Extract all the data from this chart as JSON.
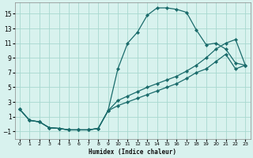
{
  "xlabel": "Humidex (Indice chaleur)",
  "background_color": "#d8f2ee",
  "grid_color": "#a8d8d0",
  "line_color": "#1a6b6b",
  "xlim": [
    -0.5,
    23.5
  ],
  "ylim": [
    -2.0,
    16.5
  ],
  "xticks": [
    0,
    1,
    2,
    3,
    4,
    5,
    6,
    7,
    8,
    9,
    10,
    11,
    12,
    13,
    14,
    15,
    16,
    17,
    18,
    19,
    20,
    21,
    22,
    23
  ],
  "yticks": [
    -1,
    1,
    3,
    5,
    7,
    9,
    11,
    13,
    15
  ],
  "line1_x": [
    0,
    1,
    2,
    3,
    4,
    5,
    6,
    7,
    8,
    9,
    10,
    11,
    12,
    13,
    14,
    15,
    16,
    17,
    18,
    19,
    20,
    21,
    22,
    23
  ],
  "line1_y": [
    2.0,
    0.5,
    0.3,
    -0.5,
    -0.6,
    -0.8,
    -0.8,
    -0.8,
    -0.6,
    1.8,
    7.5,
    11.0,
    12.5,
    14.8,
    15.8,
    15.8,
    15.6,
    15.2,
    12.8,
    10.8,
    11.0,
    10.2,
    8.3,
    8.0
  ],
  "line2_x": [
    0,
    1,
    2,
    3,
    4,
    5,
    6,
    7,
    8,
    9,
    10,
    11,
    12,
    13,
    14,
    15,
    16,
    17,
    18,
    19,
    20,
    21,
    22,
    23
  ],
  "line2_y": [
    2.0,
    0.5,
    0.3,
    -0.5,
    -0.6,
    -0.8,
    -0.8,
    -0.8,
    -0.6,
    1.8,
    3.2,
    3.8,
    4.4,
    5.0,
    5.5,
    6.0,
    6.5,
    7.2,
    8.0,
    9.0,
    10.2,
    11.0,
    11.5,
    8.0
  ],
  "line3_x": [
    0,
    1,
    2,
    3,
    4,
    5,
    6,
    7,
    8,
    9,
    10,
    11,
    12,
    13,
    14,
    15,
    16,
    17,
    18,
    19,
    20,
    21,
    22,
    23
  ],
  "line3_y": [
    2.0,
    0.5,
    0.3,
    -0.5,
    -0.6,
    -0.8,
    -0.8,
    -0.8,
    -0.6,
    1.8,
    2.5,
    3.0,
    3.5,
    4.0,
    4.5,
    5.0,
    5.5,
    6.2,
    7.0,
    7.5,
    8.5,
    9.5,
    7.5,
    8.0
  ]
}
